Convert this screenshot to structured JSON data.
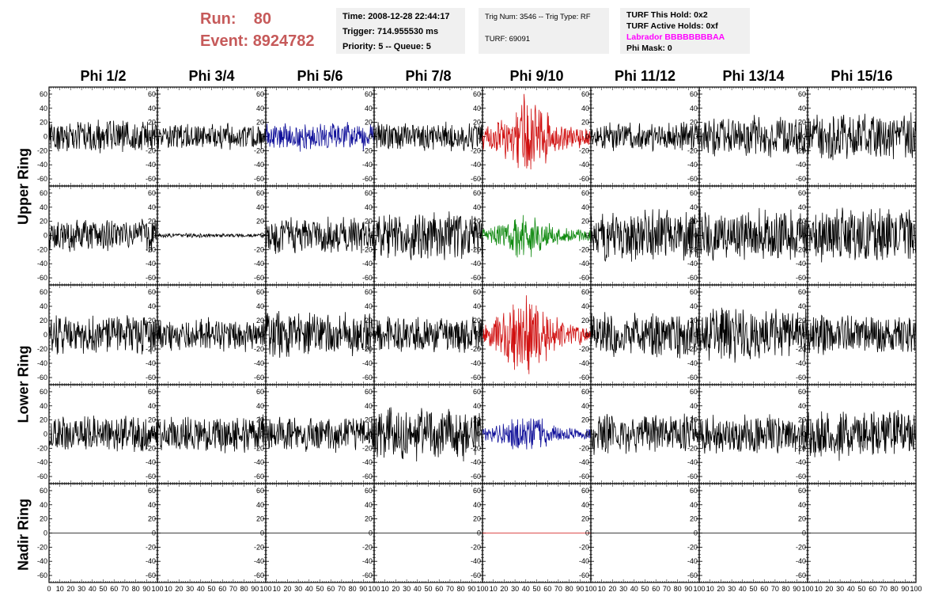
{
  "header": {
    "run_label": "Run:",
    "run_value": "80",
    "event_label": "Event:",
    "event_value": "8924782",
    "time": "Time: 2008-12-28 22:44:17",
    "trigger": "Trigger: 714.955530 ms",
    "priority": "Priority: 5 -- Queue: 5",
    "trig_num": "Trig Num: 3546 -- Trig Type: RF",
    "turf": "TURF: 69091",
    "turf_this_hold": "TURF This Hold: 0x2",
    "turf_active_holds": "TURF Active Holds: 0xf",
    "labrador": "Labrador BBBBBBBBAA",
    "phi_mask": "Phi Mask: 0"
  },
  "columns": [
    "Phi 1/2",
    "Phi 3/4",
    "Phi 5/6",
    "Phi 7/8",
    "Phi 9/10",
    "Phi 11/12",
    "Phi 13/14",
    "Phi 15/16"
  ],
  "rings": [
    "Upper Ring",
    "Lower Ring",
    "Nadir Ring"
  ],
  "y_ticks": [
    "60",
    "40",
    "20",
    "0",
    "-20",
    "-40",
    "-60"
  ],
  "x_ticks": [
    "0",
    "10",
    "20",
    "30",
    "40",
    "50",
    "60",
    "70",
    "80",
    "90",
    "100"
  ],
  "colors": {
    "accent_text": "#c65a5a",
    "labrador": "#ff00ff",
    "trace_black": "#000000",
    "trace_red": "#d01010",
    "trace_blue": "#10109a",
    "trace_green": "#108a10"
  },
  "chart_data": {
    "type": "line",
    "title": "",
    "xlabel": "",
    "ylabel": "",
    "xlim": [
      0,
      100
    ],
    "ylim": [
      -70,
      70
    ],
    "grid": false,
    "panels": [
      {
        "row": 1,
        "col": 1,
        "amp": 25,
        "color": "black",
        "burst": false
      },
      {
        "row": 1,
        "col": 2,
        "amp": 20,
        "color": "black",
        "burst": false
      },
      {
        "row": 1,
        "col": 3,
        "amp": 22,
        "color": "blue",
        "burst": false
      },
      {
        "row": 1,
        "col": 4,
        "amp": 22,
        "color": "black",
        "burst": false
      },
      {
        "row": 1,
        "col": 5,
        "amp": 50,
        "color": "red",
        "burst": true
      },
      {
        "row": 1,
        "col": 6,
        "amp": 22,
        "color": "black",
        "burst": false
      },
      {
        "row": 1,
        "col": 7,
        "amp": 32,
        "color": "black",
        "burst": false
      },
      {
        "row": 1,
        "col": 8,
        "amp": 38,
        "color": "black",
        "burst": false
      },
      {
        "row": 2,
        "col": 1,
        "amp": 25,
        "color": "black",
        "burst": false
      },
      {
        "row": 2,
        "col": 2,
        "amp": 3,
        "color": "black",
        "burst": false
      },
      {
        "row": 2,
        "col": 3,
        "amp": 28,
        "color": "black",
        "burst": false
      },
      {
        "row": 2,
        "col": 4,
        "amp": 38,
        "color": "black",
        "burst": false
      },
      {
        "row": 2,
        "col": 5,
        "amp": 30,
        "color": "green",
        "burst": true
      },
      {
        "row": 2,
        "col": 6,
        "amp": 40,
        "color": "black",
        "burst": false
      },
      {
        "row": 2,
        "col": 7,
        "amp": 40,
        "color": "black",
        "burst": false
      },
      {
        "row": 2,
        "col": 8,
        "amp": 42,
        "color": "black",
        "burst": false
      },
      {
        "row": 3,
        "col": 1,
        "amp": 30,
        "color": "black",
        "burst": false
      },
      {
        "row": 3,
        "col": 2,
        "amp": 25,
        "color": "black",
        "burst": false
      },
      {
        "row": 3,
        "col": 3,
        "amp": 35,
        "color": "black",
        "burst": false
      },
      {
        "row": 3,
        "col": 4,
        "amp": 28,
        "color": "black",
        "burst": false
      },
      {
        "row": 3,
        "col": 5,
        "amp": 50,
        "color": "red",
        "burst": true
      },
      {
        "row": 3,
        "col": 6,
        "amp": 35,
        "color": "black",
        "burst": false
      },
      {
        "row": 3,
        "col": 7,
        "amp": 40,
        "color": "black",
        "burst": false
      },
      {
        "row": 3,
        "col": 8,
        "amp": 30,
        "color": "black",
        "burst": false
      },
      {
        "row": 4,
        "col": 1,
        "amp": 28,
        "color": "black",
        "burst": false
      },
      {
        "row": 4,
        "col": 2,
        "amp": 28,
        "color": "black",
        "burst": false
      },
      {
        "row": 4,
        "col": 3,
        "amp": 28,
        "color": "black",
        "burst": false
      },
      {
        "row": 4,
        "col": 4,
        "amp": 40,
        "color": "black",
        "burst": false
      },
      {
        "row": 4,
        "col": 5,
        "amp": 25,
        "color": "blue",
        "burst": true
      },
      {
        "row": 4,
        "col": 6,
        "amp": 30,
        "color": "black",
        "burst": false
      },
      {
        "row": 4,
        "col": 7,
        "amp": 32,
        "color": "black",
        "burst": false
      },
      {
        "row": 4,
        "col": 8,
        "amp": 38,
        "color": "black",
        "burst": false
      },
      {
        "row": 5,
        "col": 1,
        "amp": 0,
        "color": "black",
        "burst": false
      },
      {
        "row": 5,
        "col": 2,
        "amp": 0,
        "color": "black",
        "burst": false
      },
      {
        "row": 5,
        "col": 3,
        "amp": 0,
        "color": "black",
        "burst": false
      },
      {
        "row": 5,
        "col": 4,
        "amp": 0,
        "color": "black",
        "burst": false
      },
      {
        "row": 5,
        "col": 5,
        "amp": 0,
        "color": "red",
        "burst": false
      },
      {
        "row": 5,
        "col": 6,
        "amp": 0,
        "color": "black",
        "burst": false
      },
      {
        "row": 5,
        "col": 7,
        "amp": 0,
        "color": "black",
        "burst": false
      },
      {
        "row": 5,
        "col": 8,
        "amp": 0,
        "color": "black",
        "burst": false
      }
    ]
  }
}
